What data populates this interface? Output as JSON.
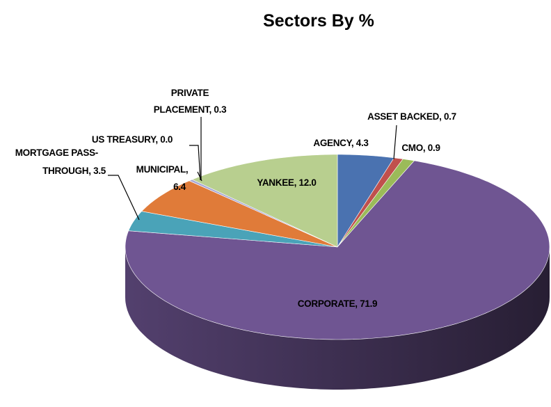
{
  "chart_data": {
    "type": "pie3d",
    "title": "Sectors By %",
    "values": [
      4.3,
      0.7,
      0.9,
      71.9,
      3.5,
      6.4,
      0.0,
      0.3,
      12.0
    ],
    "value_labels": [
      [
        "AGENCY, 4.3"
      ],
      [
        "ASSET BACKED, 0.7"
      ],
      [
        "CMO, 0.9"
      ],
      [
        "CORPORATE, 71.9"
      ],
      [
        "MORTGAGE PASS-",
        "THROUGH, 3.5"
      ],
      [
        "MUNICIPAL,",
        "6.4"
      ],
      [
        "US TREASURY, 0.0"
      ],
      [
        "PRIVATE",
        "PLACEMENT, 0.3"
      ],
      [
        "YANKEE, 12.0"
      ]
    ],
    "colors": [
      "#4a72b0",
      "#c0504d",
      "#9bbb59",
      "#6f5592",
      "#4aa3b8",
      "#e07b39",
      "#4f81bd",
      "#a9a9d6",
      "#b8cf8f"
    ]
  }
}
